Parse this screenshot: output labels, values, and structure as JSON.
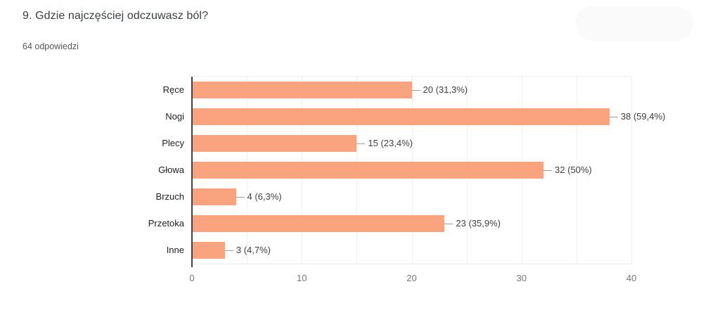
{
  "header": {
    "title": "9. Gdzie najczęściej odczuwasz ból?",
    "responses_count": "64 odpowiedzi"
  },
  "chart_data": {
    "type": "bar",
    "orientation": "horizontal",
    "title": "9. Gdzie najczęściej odczuwasz ból?",
    "subtitle": "64 odpowiedzi",
    "categories": [
      "Ręce",
      "Nogi",
      "Plecy",
      "Głowa",
      "Brzuch",
      "Przetoka",
      "Inne"
    ],
    "values": [
      20,
      38,
      15,
      32,
      4,
      23,
      3
    ],
    "value_labels": [
      "20 (31,3%)",
      "38 (59,4%)",
      "15 (23,4%)",
      "32 (50%)",
      "4 (6,3%)",
      "23 (35,9%)",
      "3 (4,7%)"
    ],
    "total_responses": 64,
    "xlim": [
      0,
      40
    ],
    "x_ticks": [
      0,
      10,
      20,
      30,
      40
    ],
    "gridline_step": 5,
    "grid": true,
    "legend_position": "none",
    "colors": {
      "bar": "#F9A47E",
      "gridline": "#efefef",
      "axis_line": "#424242",
      "tick_label": "#757575",
      "value_label": "#404040",
      "category_label": "#212121",
      "connector": "#9e9e9e"
    }
  }
}
